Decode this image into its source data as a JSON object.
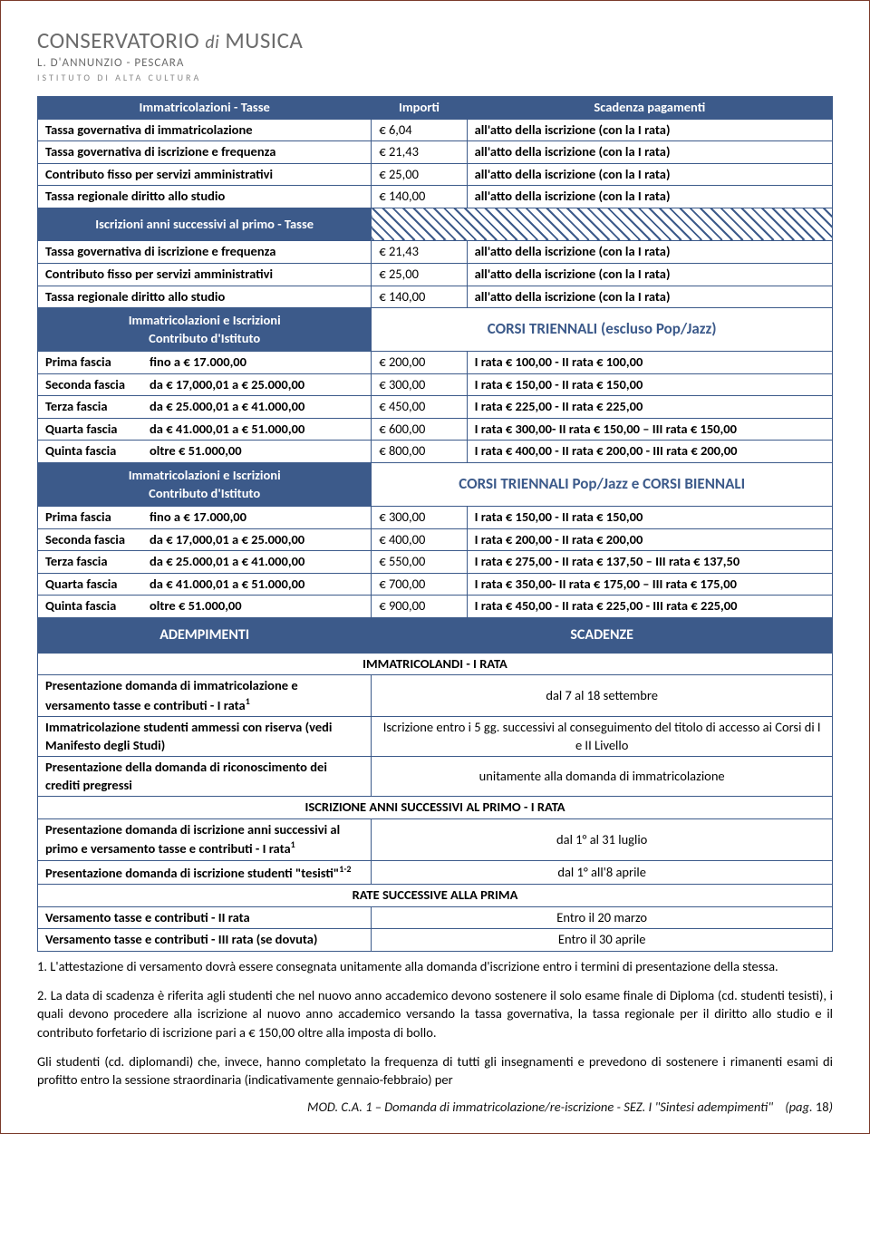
{
  "logo": {
    "line1a": "CONSERVATORIO",
    "line1b": "di",
    "line1c": "MUSICA",
    "line2": "L. D'ANNUNZIO - PESCARA",
    "line3": "ISTITUTO DI ALTA CULTURA"
  },
  "headers": {
    "col1": "Immatricolazioni - Tasse",
    "col2": "Importi",
    "col3": "Scadenza pagamenti"
  },
  "sec1": [
    {
      "desc": "Tassa governativa di immatricolazione",
      "amt": "€ 6,04",
      "due": "all'atto della iscrizione (con la I rata)"
    },
    {
      "desc": "Tassa governativa di iscrizione e frequenza",
      "amt": "€ 21,43",
      "due": "all'atto della iscrizione (con la I rata)"
    },
    {
      "desc": "Contributo fisso per servizi amministrativi",
      "amt": "€ 25,00",
      "due": "all'atto della iscrizione (con la I rata)"
    },
    {
      "desc": "Tassa regionale diritto allo studio",
      "amt": "€ 140,00",
      "due": "all'atto della iscrizione (con la I rata)"
    }
  ],
  "sec2_title": "Iscrizioni anni successivi al primo - Tasse",
  "sec2": [
    {
      "desc": "Tassa governativa di iscrizione e frequenza",
      "amt": "€ 21,43",
      "due": "all'atto della iscrizione (con la I rata)"
    },
    {
      "desc": "Contributo fisso per servizi amministrativi",
      "amt": "€ 25,00",
      "due": "all'atto della iscrizione (con la I rata)"
    },
    {
      "desc": "Tassa regionale diritto allo studio",
      "amt": "€ 140,00",
      "due": "all'atto della iscrizione (con la I rata)"
    }
  ],
  "sec3_title_left": "Immatricolazioni e Iscrizioni\nContributo d'Istituto",
  "sec3_title_right": "CORSI TRIENNALI (escluso Pop/Jazz)",
  "sec3": [
    {
      "lbl": "Prima fascia",
      "range": "fino a  € 17.000,00",
      "amt": "€ 200,00",
      "due": "I rata € 100,00 - II rata € 100,00"
    },
    {
      "lbl": "Seconda fascia",
      "range": "da  € 17,000,01  a € 25.000,00",
      "amt": "€ 300,00",
      "due": "I rata € 150,00 - II rata € 150,00"
    },
    {
      "lbl": "Terza fascia",
      "range": "da  € 25.000,01 a  € 41.000,00",
      "amt": "€ 450,00",
      "due": "I rata € 225,00 - II rata € 225,00"
    },
    {
      "lbl": "Quarta fascia",
      "range": "da € 41.000,01 a € 51.000,00",
      "amt": "€ 600,00",
      "due": "I rata € 300,00- II rata € 150,00 – III rata € 150,00"
    },
    {
      "lbl": "Quinta fascia",
      "range": "oltre € 51.000,00",
      "amt": "€ 800,00",
      "due": "I rata € 400,00 - II rata € 200,00  - III rata € 200,00"
    }
  ],
  "sec4_title_left": "Immatricolazioni e Iscrizioni\nContributo d'Istituto",
  "sec4_title_right": "CORSI TRIENNALI Pop/Jazz e CORSI BIENNALI",
  "sec4": [
    {
      "lbl": "Prima fascia",
      "range": "fino a  € 17.000,00",
      "amt": "€ 300,00",
      "due": "I rata € 150,00 - II rata € 150,00"
    },
    {
      "lbl": "Seconda fascia",
      "range": "da  € 17,000,01  a € 25.000,00",
      "amt": "€ 400,00",
      "due": "I rata € 200,00 - II rata € 200,00"
    },
    {
      "lbl": "Terza fascia",
      "range": "da  € 25.000,01 a  € 41.000,00",
      "amt": "€ 550,00",
      "due": "I rata € 275,00 - II rata € 137,50 – III rata € 137,50"
    },
    {
      "lbl": "Quarta fascia",
      "range": "da € 41.000,01 a € 51.000,00",
      "amt": "€ 700,00",
      "due": "I rata € 350,00- II rata € 175,00 – III rata € 175,00"
    },
    {
      "lbl": "Quinta fascia",
      "range": "oltre € 51.000,00",
      "amt": "€ 900,00",
      "due": "I rata € 450,00 - II rata € 225,00  - III rata € 225,00"
    }
  ],
  "adempimenti_hdr_left": "ADEMPIMENTI",
  "adempimenti_hdr_right": "SCADENZE",
  "group1_title": "IMMATRICOLANDI - I RATA",
  "group1": [
    {
      "desc": "Presentazione domanda di immatricolazione e versamento tasse e contributi - I rata",
      "sup": "1",
      "due": "dal 7 al 18 settembre"
    },
    {
      "desc": "Immatricolazione studenti ammessi con riserva (vedi Manifesto degli Studi)",
      "sup": "",
      "due": "Iscrizione entro i 5 gg. successivi al conseguimento del titolo di accesso ai Corsi di I e II Livello"
    },
    {
      "desc": "Presentazione della domanda di riconoscimento dei crediti pregressi",
      "sup": "",
      "due": "unitamente alla domanda di immatricolazione"
    }
  ],
  "group2_title": "ISCRIZIONE ANNI SUCCESSIVI AL PRIMO - I RATA",
  "group2": [
    {
      "desc": "Presentazione domanda di iscrizione anni successivi al primo e versamento tasse e contributi - I rata",
      "sup": "1",
      "due": "dal 1° al 31 luglio"
    },
    {
      "desc": "Presentazione domanda di iscrizione studenti \"tesisti\"",
      "sup": "1-2",
      "due": "dal 1° all'8 aprile"
    }
  ],
  "group3_title": "RATE SUCCESSIVE ALLA PRIMA",
  "group3": [
    {
      "desc": "Versamento tasse e contributi - II rata",
      "sup": "",
      "due": "Entro il 20 marzo"
    },
    {
      "desc": "Versamento tasse e contributi - III rata (se dovuta)",
      "sup": "",
      "due": "Entro il 30 aprile"
    }
  ],
  "notes": [
    "1. L'attestazione di versamento dovrà essere consegnata unitamente alla domanda d'iscrizione entro i termini di presentazione della stessa.",
    "2. La data di scadenza è riferita agli studenti che nel nuovo anno accademico devono sostenere il solo esame finale di Diploma (cd. studenti tesisti), i quali devono procedere alla iscrizione al nuovo anno accademico versando la tassa governativa, la tassa regionale per il diritto allo studio e il contributo forfetario di iscrizione pari a € 150,00 oltre alla imposta di bollo.",
    "Gli studenti (cd. diplomandi) che, invece, hanno completato la frequenza di tutti gli insegnamenti e prevedono di sostenere i rimanenti esami di profitto entro la sessione straordinaria (indicativamente gennaio-febbraio) per"
  ],
  "footer": {
    "text": "MOD. C.A. 1 – Domanda di immatricolazione/re-iscrizione - SEZ. I \"Sintesi adempimenti\"",
    "pag_label": "(pag. ",
    "pag_no": "18",
    "pag_close": ")"
  }
}
